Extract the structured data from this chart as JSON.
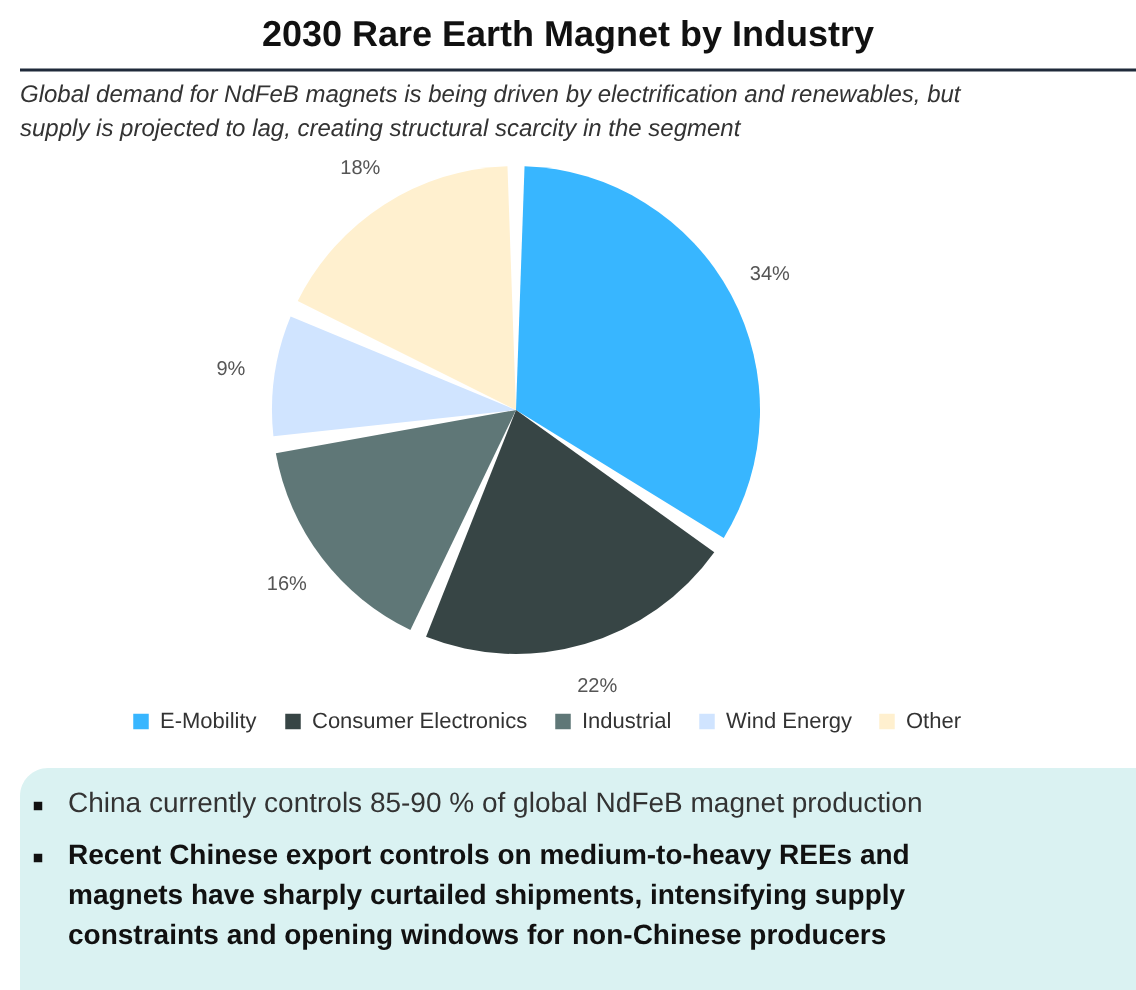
{
  "chart_data": {
    "type": "pie",
    "title": "2030 Rare Earth Magnet by Industry",
    "subtitle": "Global demand for NdFeB magnets is being driven by electrification and renewables, but supply is projected to lag, creating structural scarcity in the segment",
    "categories": [
      "E-Mobility",
      "Consumer Electronics",
      "Industrial",
      "Wind Energy",
      "Other"
    ],
    "values": [
      34,
      22,
      16,
      9,
      18
    ],
    "value_labels": [
      "34%",
      "22%",
      "16%",
      "9%",
      "18%"
    ],
    "colors": [
      "#38b6ff",
      "#374545",
      "#5f7777",
      "#d0e4ff",
      "#fff0cf"
    ],
    "legend": "bottom",
    "annotations": [
      "China currently controls 85-90 % of global NdFeB magnet production",
      "Recent Chinese export controls on medium-to-heavy REEs and magnets have sharply curtailed shipments, intensifying supply constraints and opening windows for non-Chinese producers"
    ]
  }
}
